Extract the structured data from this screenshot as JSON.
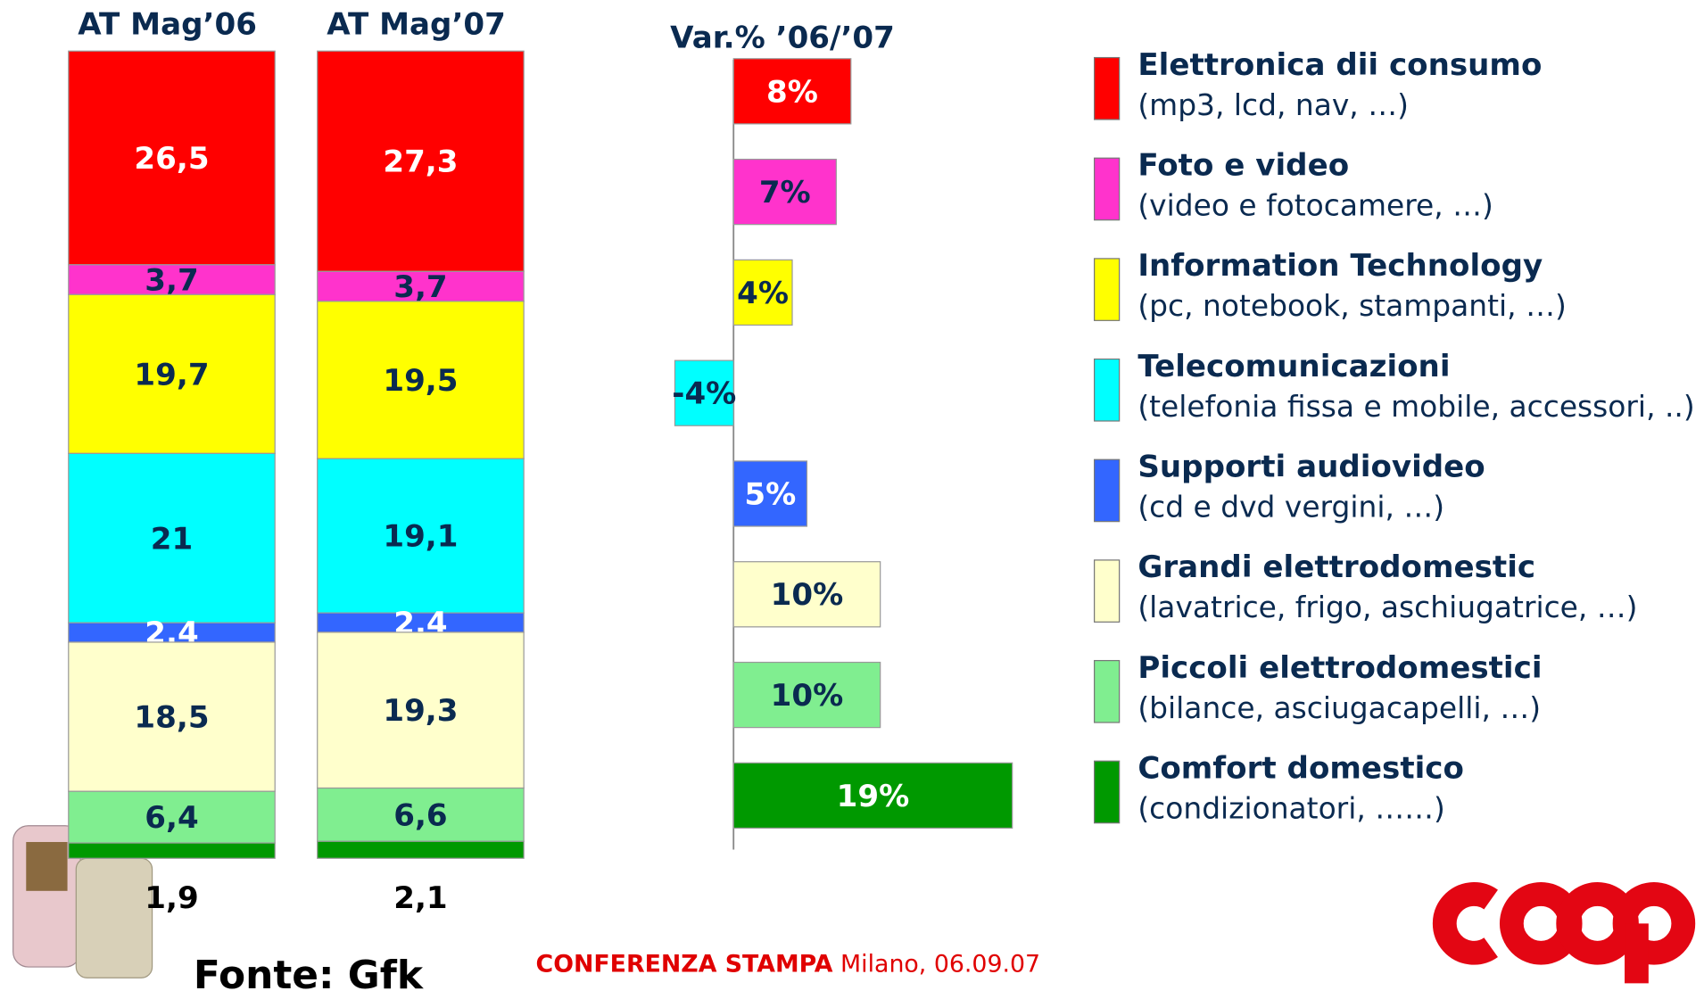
{
  "chart_data": [
    {
      "type": "stacked_bar",
      "categories": [
        "AT Mag’06",
        "AT Mag’07"
      ],
      "series": [
        {
          "name": "Elettronica dii consumo",
          "description": "(mp3, lcd, nav, …)",
          "color": "#ff0000",
          "label_color": "#ffffff",
          "values": [
            26.5,
            27.3
          ],
          "value_labels": [
            "26,5",
            "27,3"
          ]
        },
        {
          "name": "Foto e video",
          "description": "(video e fotocamere, …)",
          "color": "#ff33cc",
          "label_color": "#0a2a50",
          "values": [
            3.7,
            3.7
          ],
          "value_labels": [
            "3,7",
            "3,7"
          ]
        },
        {
          "name": "Information Technology",
          "description": "(pc, notebook, stampanti, …)",
          "color": "#ffff00",
          "label_color": "#0a2a50",
          "values": [
            19.7,
            19.5
          ],
          "value_labels": [
            "19,7",
            "19,5"
          ]
        },
        {
          "name": "Telecomunicazioni",
          "description": "(telefonia fissa e mobile, accessori, ..)",
          "color": "#00ffff",
          "label_color": "#0a2a50",
          "values": [
            21,
            19.1
          ],
          "value_labels": [
            "21",
            "19,1"
          ]
        },
        {
          "name": "Supporti audiovideo",
          "description": "(cd e dvd vergini, …)",
          "color": "#3366ff",
          "label_color": "#ffffff",
          "values": [
            2.4,
            2.4
          ],
          "value_labels": [
            "2,4",
            "2,4"
          ]
        },
        {
          "name": "Grandi elettrodomestic",
          "description": "(lavatrice, frigo, aschiugatrice, …)",
          "color": "#ffffcc",
          "label_color": "#0a2a50",
          "values": [
            18.5,
            19.3
          ],
          "value_labels": [
            "18,5",
            "19,3"
          ]
        },
        {
          "name": "Piccoli elettrodomestici",
          "description": "(bilance, asciugacapelli, …)",
          "color": "#80ee90",
          "label_color": "#0a2a50",
          "values": [
            6.4,
            6.6
          ],
          "value_labels": [
            "6,4",
            "6,6"
          ]
        },
        {
          "name": "Comfort domestico",
          "description": "(condizionatori, ……)",
          "color": "#009900",
          "label_color": "#000000",
          "values": [
            1.9,
            2.1
          ],
          "value_labels": [
            "1,9",
            "2,1"
          ]
        }
      ]
    },
    {
      "type": "hbar",
      "title": "Var.% ’06/’07",
      "values": [
        8,
        7,
        4,
        -4,
        5,
        10,
        10,
        19
      ],
      "value_labels": [
        "8%",
        "7%",
        "4%",
        "-4%",
        "5%",
        "10%",
        "10%",
        "19%"
      ]
    }
  ],
  "source": "Fonte: Gfk",
  "footer": {
    "event": "CONFERENZA STAMPA",
    "place_date": "Milano, 06.09.07"
  }
}
